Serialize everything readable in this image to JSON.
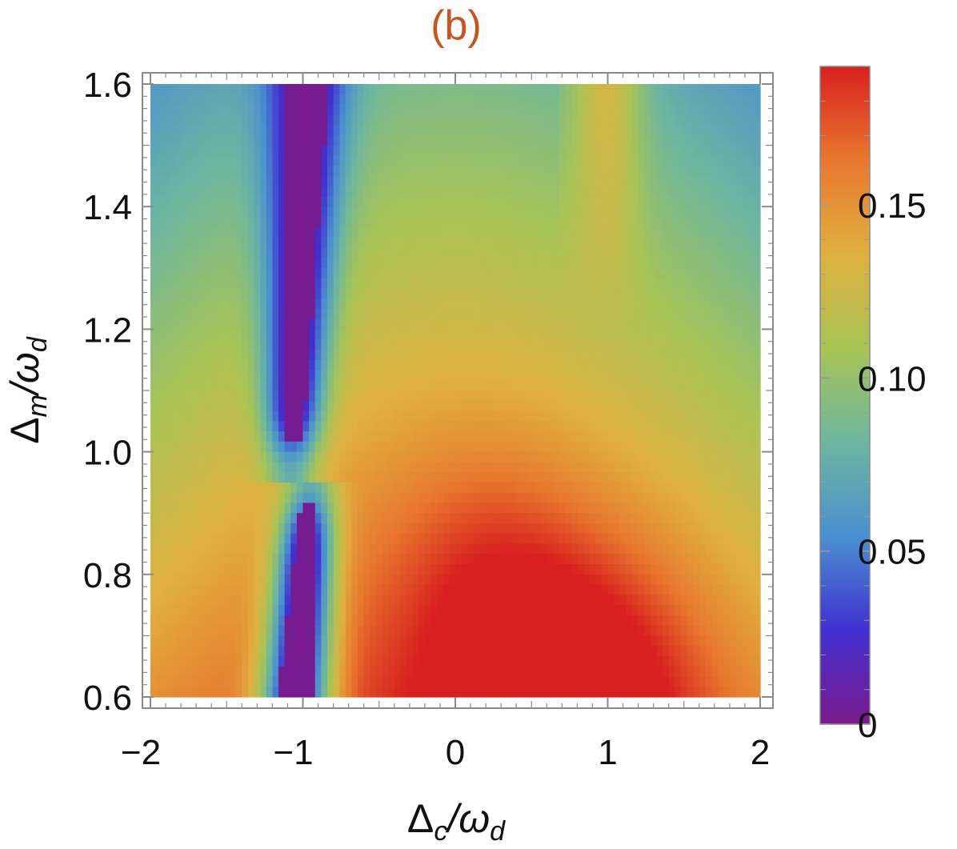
{
  "panel_label": "(b)",
  "chart_data": {
    "type": "heatmap",
    "title": "",
    "xlabel_main": "Δ",
    "xlabel_sub": "c",
    "xlabel_rest": "/ω",
    "xlabel_sub2": "d",
    "ylabel_main": "Δ",
    "ylabel_sub": "m",
    "ylabel_rest": "/ω",
    "ylabel_sub2": "d",
    "xlim": [
      -2,
      2
    ],
    "ylim": [
      0.6,
      1.6
    ],
    "x_ticks": [
      -2,
      -1,
      0,
      1,
      2
    ],
    "x_tick_labels": [
      "−2",
      "−1",
      "0",
      "1",
      "2"
    ],
    "y_ticks": [
      0.6,
      0.8,
      1.0,
      1.2,
      1.4,
      1.6
    ],
    "y_tick_labels": [
      "0.6",
      "0.8",
      "1.0",
      "1.2",
      "1.4",
      "1.6"
    ],
    "colorbar": {
      "min": 0,
      "max": 0.19,
      "ticks": [
        0,
        0.05,
        0.1,
        0.15
      ],
      "tick_labels": [
        "0",
        "0.05",
        "0.10",
        "0.15"
      ],
      "colors": [
        "#7a1a8c",
        "#4030d0",
        "#4a90d0",
        "#6cb6a0",
        "#a8c455",
        "#e0b040",
        "#e8782e",
        "#d8201e"
      ]
    },
    "description_values": {
      "peak": {
        "x": 0.7,
        "y": 0.62,
        "value": 0.19
      },
      "lower_dark_region": {
        "x": -1.05,
        "y_range": [
          0.6,
          0.88
        ],
        "value": 0
      },
      "upper_dark_region": {
        "x": -0.95,
        "y_range": [
          1.05,
          1.6
        ],
        "value": 0
      }
    }
  }
}
